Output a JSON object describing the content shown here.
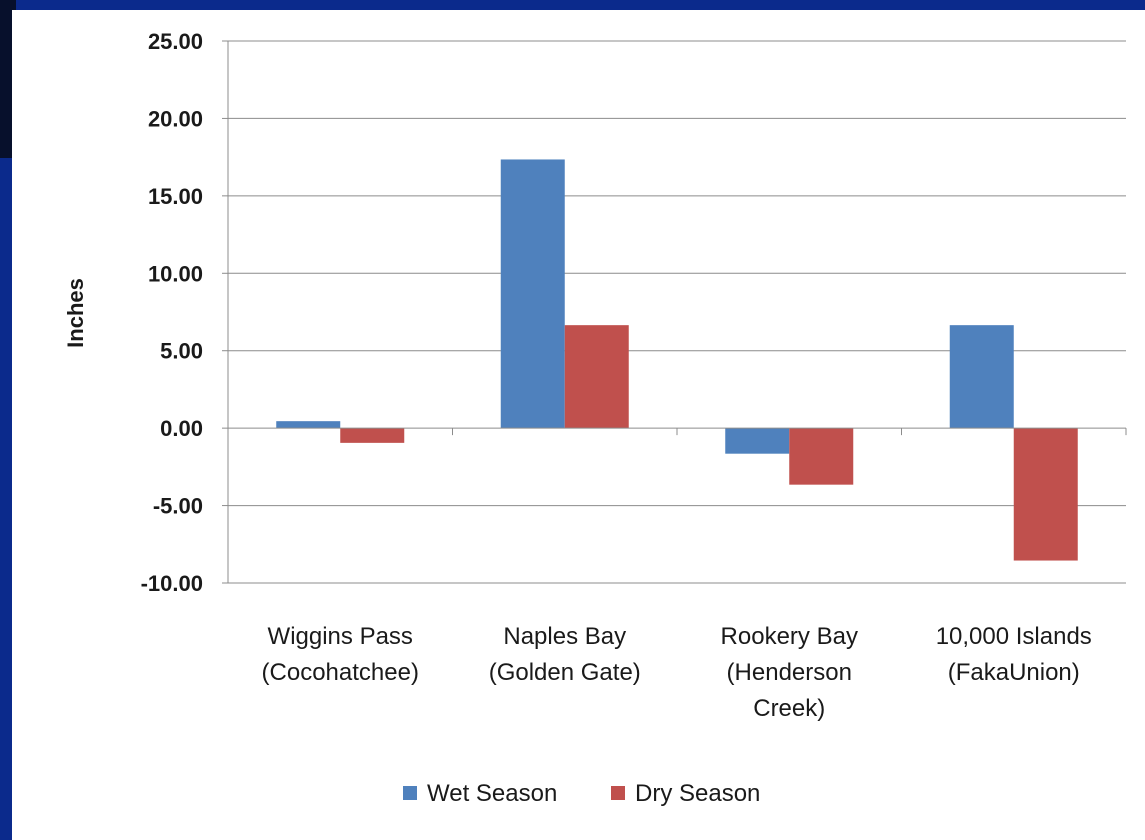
{
  "chart_data": {
    "type": "bar",
    "title": "",
    "xlabel": "",
    "ylabel": "Inches",
    "ylim": [
      -10,
      25
    ],
    "yticks": [
      "25.00",
      "20.00",
      "15.00",
      "10.00",
      "5.00",
      "0.00",
      "-5.00",
      "-10.00"
    ],
    "categories": [
      [
        "Wiggins Pass",
        "(Cocohatchee)"
      ],
      [
        "Naples Bay",
        "(Golden Gate)"
      ],
      [
        "Rookery Bay",
        "(Henderson",
        "Creek)"
      ],
      [
        "10,000 Islands",
        "(FakaUnion)"
      ]
    ],
    "series": [
      {
        "name": "Wet Season",
        "color": "#4f81bd",
        "values": [
          0.45,
          17.35,
          -1.65,
          6.65
        ]
      },
      {
        "name": "Dry Season",
        "color": "#c0504d",
        "values": [
          -0.95,
          6.65,
          -3.65,
          -8.55
        ]
      }
    ],
    "grid": true,
    "legend_position": "bottom"
  }
}
